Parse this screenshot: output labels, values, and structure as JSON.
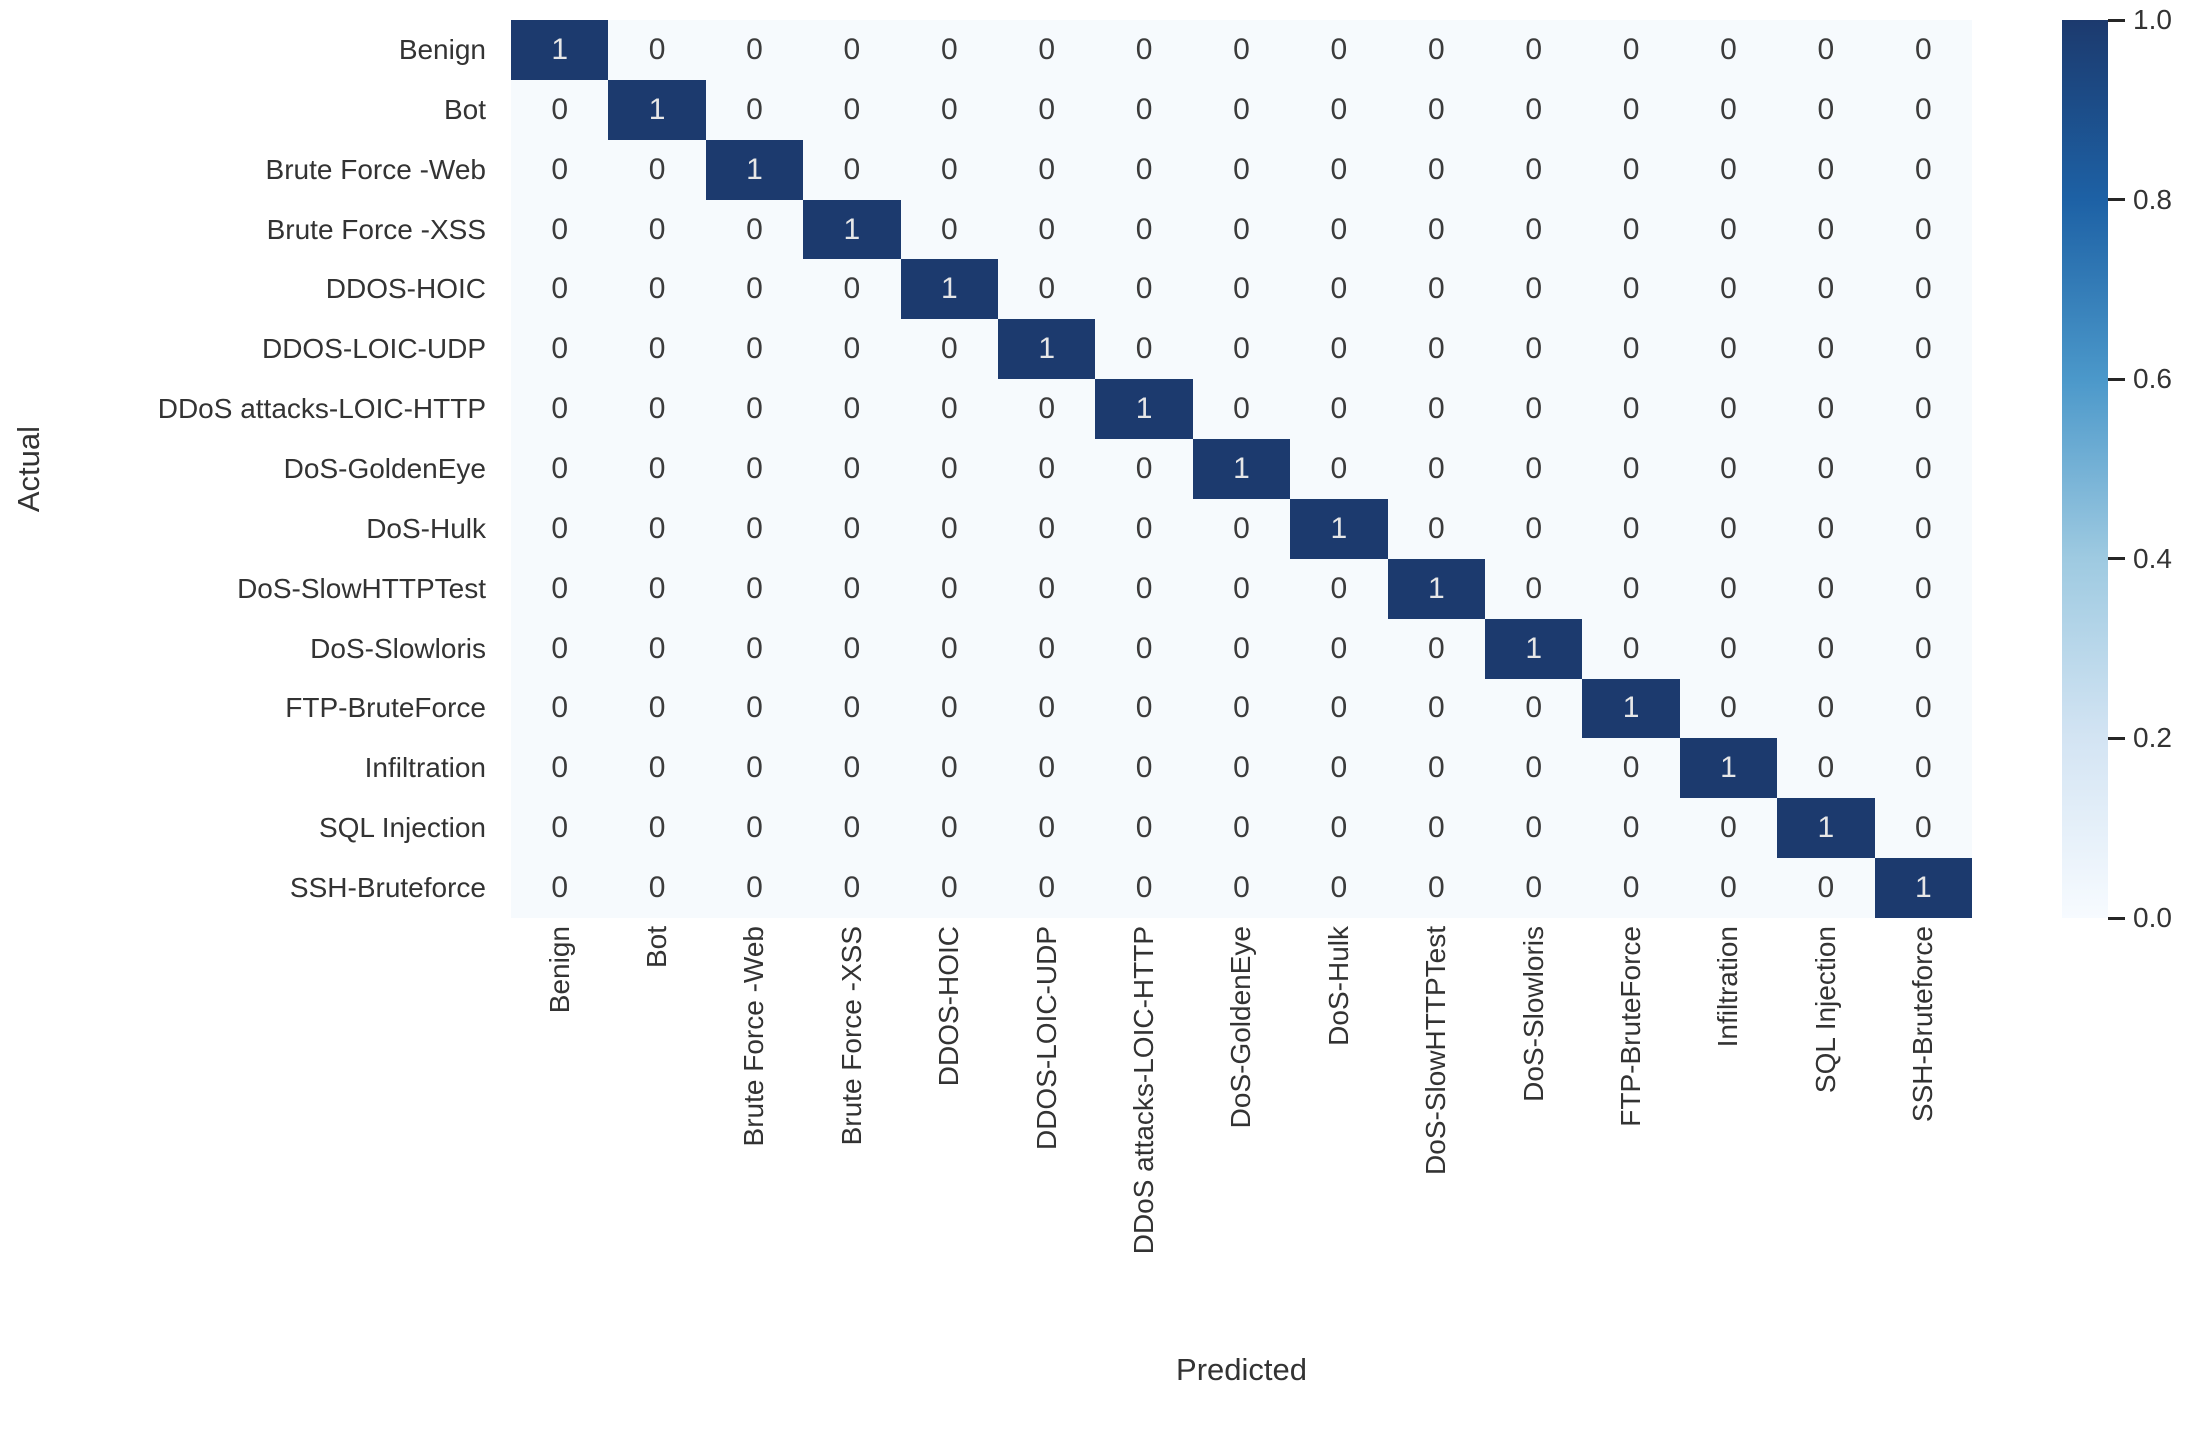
{
  "chart_data": {
    "type": "heatmap",
    "title": "",
    "xlabel": "Predicted",
    "ylabel": "Actual",
    "categories": [
      "Benign",
      "Bot",
      "Brute Force -Web",
      "Brute Force -XSS",
      "DDOS-HOIC",
      "DDOS-LOIC-UDP",
      "DDoS attacks-LOIC-HTTP",
      "DoS-GoldenEye",
      "DoS-Hulk",
      "DoS-SlowHTTPTest",
      "DoS-Slowloris",
      "FTP-BruteForce",
      "Infiltration",
      "SQL Injection",
      "SSH-Bruteforce"
    ],
    "matrix": [
      [
        1,
        0,
        0,
        0,
        0,
        0,
        0,
        0,
        0,
        0,
        0,
        0,
        0,
        0,
        0
      ],
      [
        0,
        1,
        0,
        0,
        0,
        0,
        0,
        0,
        0,
        0,
        0,
        0,
        0,
        0,
        0
      ],
      [
        0,
        0,
        1,
        0,
        0,
        0,
        0,
        0,
        0,
        0,
        0,
        0,
        0,
        0,
        0
      ],
      [
        0,
        0,
        0,
        1,
        0,
        0,
        0,
        0,
        0,
        0,
        0,
        0,
        0,
        0,
        0
      ],
      [
        0,
        0,
        0,
        0,
        1,
        0,
        0,
        0,
        0,
        0,
        0,
        0,
        0,
        0,
        0
      ],
      [
        0,
        0,
        0,
        0,
        0,
        1,
        0,
        0,
        0,
        0,
        0,
        0,
        0,
        0,
        0
      ],
      [
        0,
        0,
        0,
        0,
        0,
        0,
        1,
        0,
        0,
        0,
        0,
        0,
        0,
        0,
        0
      ],
      [
        0,
        0,
        0,
        0,
        0,
        0,
        0,
        1,
        0,
        0,
        0,
        0,
        0,
        0,
        0
      ],
      [
        0,
        0,
        0,
        0,
        0,
        0,
        0,
        0,
        1,
        0,
        0,
        0,
        0,
        0,
        0
      ],
      [
        0,
        0,
        0,
        0,
        0,
        0,
        0,
        0,
        0,
        1,
        0,
        0,
        0,
        0,
        0
      ],
      [
        0,
        0,
        0,
        0,
        0,
        0,
        0,
        0,
        0,
        0,
        1,
        0,
        0,
        0,
        0
      ],
      [
        0,
        0,
        0,
        0,
        0,
        0,
        0,
        0,
        0,
        0,
        0,
        1,
        0,
        0,
        0
      ],
      [
        0,
        0,
        0,
        0,
        0,
        0,
        0,
        0,
        0,
        0,
        0,
        0,
        1,
        0,
        0
      ],
      [
        0,
        0,
        0,
        0,
        0,
        0,
        0,
        0,
        0,
        0,
        0,
        0,
        0,
        1,
        0
      ],
      [
        0,
        0,
        0,
        0,
        0,
        0,
        0,
        0,
        0,
        0,
        0,
        0,
        0,
        0,
        1
      ]
    ],
    "value_range": [
      0.0,
      1.0
    ],
    "colormap": "Blues",
    "legend_position": "right-colorbar",
    "grid": false,
    "colorbar": {
      "ticks": [
        {
          "label": "1.0",
          "value": 1.0
        },
        {
          "label": "0.8",
          "value": 0.8
        },
        {
          "label": "0.6",
          "value": 0.6
        },
        {
          "label": "0.4",
          "value": 0.4
        },
        {
          "label": "0.2",
          "value": 0.2
        },
        {
          "label": "0.0",
          "value": 0.0
        }
      ]
    },
    "colors": {
      "cell_high": "#1c3a6e",
      "cell_low": "#f6fafd",
      "annot_on_dark": "#e7e7e7",
      "annot_on_light": "#3b3b3b",
      "tick_text": "#333333",
      "gradient_stops": [
        "#f7fbff",
        "#d3e4f3",
        "#9ecae1",
        "#4b98ca",
        "#1d61a5",
        "#1c3a6e"
      ]
    }
  }
}
